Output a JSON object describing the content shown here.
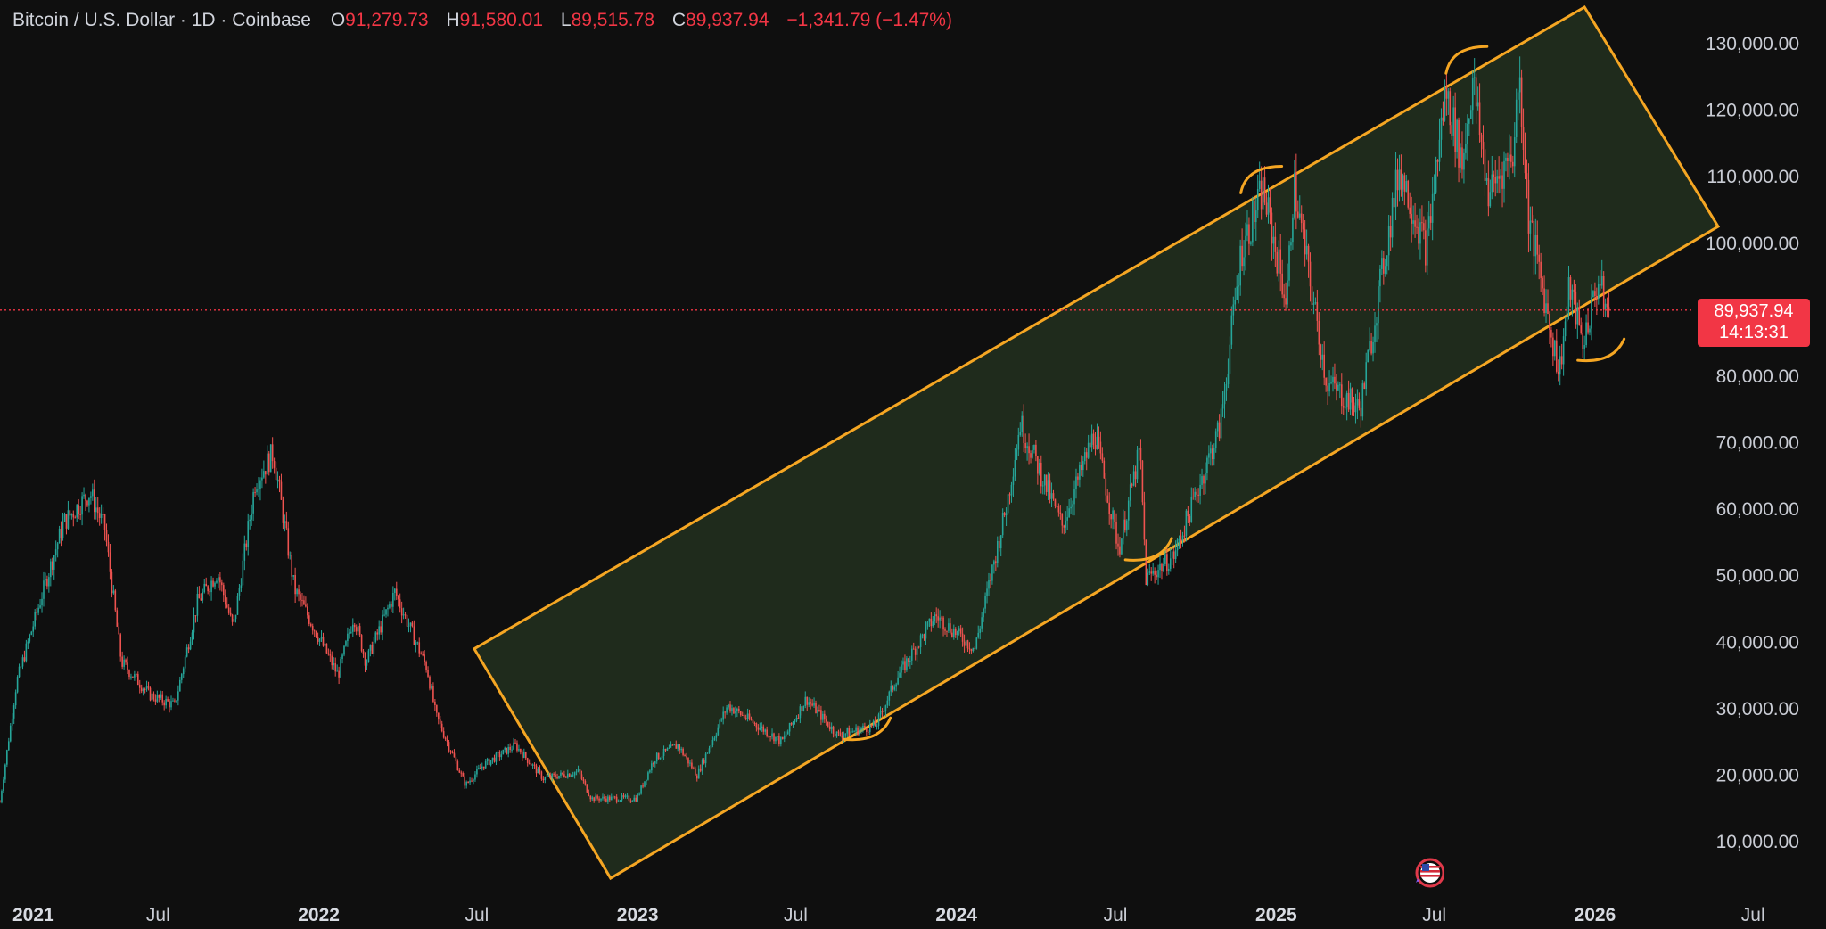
{
  "legend": {
    "symbol": "Bitcoin / U.S. Dollar · 1D · Coinbase",
    "open_label": "O",
    "open": "91,279.73",
    "high_label": "H",
    "high": "91,580.01",
    "low_label": "L",
    "low": "89,515.78",
    "close_label": "C",
    "close": "89,937.94",
    "change": "−1,341.79 (−1.47%)"
  },
  "price_tag": {
    "price": "89,937.94",
    "countdown": "14:13:31"
  },
  "colors": {
    "background": "#0f0f0f",
    "up": "#26a69a",
    "down": "#ef5350",
    "channel_stroke": "#f5a623",
    "channel_fill": "#1f2b1c",
    "last_price": "#f23645"
  },
  "chart_data": {
    "type": "candlestick",
    "y_scale": "linear",
    "ylim": [
      0,
      137000
    ],
    "yticks": [
      10000,
      20000,
      30000,
      40000,
      50000,
      60000,
      70000,
      80000,
      90000,
      100000,
      110000,
      120000,
      130000
    ],
    "ytick_labels": [
      "10,000.00",
      "20,000.00",
      "30,000.00",
      "40,000.00",
      "50,000.00",
      "60,000.00",
      "70,000.00",
      "80,000.00",
      "90,000.00",
      "100,000.00",
      "110,000.00",
      "120,000.00",
      "130,000.00"
    ],
    "xlim": [
      "2021-01-01",
      "2026-09-01"
    ],
    "xticks": [
      {
        "date": "2021-01-01",
        "label": "2021",
        "year": true
      },
      {
        "date": "2021-07-01",
        "label": "Jul",
        "year": false
      },
      {
        "date": "2022-01-01",
        "label": "2022",
        "year": true
      },
      {
        "date": "2022-07-01",
        "label": "Jul",
        "year": false
      },
      {
        "date": "2023-01-01",
        "label": "2023",
        "year": true
      },
      {
        "date": "2023-07-01",
        "label": "Jul",
        "year": false
      },
      {
        "date": "2024-01-01",
        "label": "2024",
        "year": true
      },
      {
        "date": "2024-07-01",
        "label": "Jul",
        "year": false
      },
      {
        "date": "2025-01-01",
        "label": "2025",
        "year": true
      },
      {
        "date": "2025-07-01",
        "label": "Jul",
        "year": false
      },
      {
        "date": "2026-01-01",
        "label": "2026",
        "year": true
      },
      {
        "date": "2026-07-01",
        "label": "Jul",
        "year": false
      }
    ],
    "last_price": 89937.94,
    "price_path": [
      [
        "2021-01-01",
        16000
      ],
      [
        "2021-01-20",
        34000
      ],
      [
        "2021-02-20",
        48000
      ],
      [
        "2021-03-15",
        58000
      ],
      [
        "2021-04-14",
        62500
      ],
      [
        "2021-05-01",
        57000
      ],
      [
        "2021-05-20",
        37000
      ],
      [
        "2021-06-22",
        32000
      ],
      [
        "2021-07-20",
        30500
      ],
      [
        "2021-08-15",
        46000
      ],
      [
        "2021-09-07",
        50500
      ],
      [
        "2021-09-25",
        42000
      ],
      [
        "2021-10-20",
        64000
      ],
      [
        "2021-11-10",
        68500
      ],
      [
        "2021-12-04",
        48000
      ],
      [
        "2022-01-23",
        35000
      ],
      [
        "2022-02-10",
        44000
      ],
      [
        "2022-02-24",
        37000
      ],
      [
        "2022-03-29",
        47500
      ],
      [
        "2022-05-05",
        36000
      ],
      [
        "2022-05-15",
        29000
      ],
      [
        "2022-06-18",
        18500
      ],
      [
        "2022-07-08",
        21500
      ],
      [
        "2022-08-14",
        24500
      ],
      [
        "2022-09-15",
        19500
      ],
      [
        "2022-10-25",
        20500
      ],
      [
        "2022-11-09",
        16500
      ],
      [
        "2022-12-31",
        16500
      ],
      [
        "2023-01-20",
        22500
      ],
      [
        "2023-02-16",
        24500
      ],
      [
        "2023-03-10",
        20000
      ],
      [
        "2023-04-14",
        30500
      ],
      [
        "2023-06-15",
        25000
      ],
      [
        "2023-07-13",
        31500
      ],
      [
        "2023-08-18",
        26000
      ],
      [
        "2023-10-01",
        27500
      ],
      [
        "2023-10-24",
        34500
      ],
      [
        "2023-12-08",
        44000
      ],
      [
        "2024-01-22",
        39000
      ],
      [
        "2024-02-28",
        61000
      ],
      [
        "2024-03-14",
        73000
      ],
      [
        "2024-05-01",
        57500
      ],
      [
        "2024-06-07",
        71500
      ],
      [
        "2024-07-05",
        54000
      ],
      [
        "2024-07-29",
        69000
      ],
      [
        "2024-08-05",
        49500
      ],
      [
        "2024-09-06",
        53000
      ],
      [
        "2024-10-29",
        72500
      ],
      [
        "2024-11-22",
        99000
      ],
      [
        "2024-12-17",
        108000
      ],
      [
        "2025-01-13",
        91000
      ],
      [
        "2025-01-21",
        109000
      ],
      [
        "2025-02-28",
        79000
      ],
      [
        "2025-04-07",
        75000
      ],
      [
        "2025-05-22",
        111500
      ],
      [
        "2025-06-22",
        99000
      ],
      [
        "2025-07-14",
        123000
      ],
      [
        "2025-08-02",
        112000
      ],
      [
        "2025-08-14",
        124500
      ],
      [
        "2025-09-01",
        107500
      ],
      [
        "2025-09-30",
        114000
      ],
      [
        "2025-10-06",
        126000
      ],
      [
        "2025-10-17",
        104000
      ],
      [
        "2025-11-21",
        80500
      ],
      [
        "2025-12-03",
        93500
      ],
      [
        "2025-12-18",
        85000
      ],
      [
        "2026-01-05",
        94500
      ],
      [
        "2026-01-13",
        90500
      ],
      [
        "2026-01-17",
        89937.94
      ]
    ],
    "channel": {
      "upper": [
        [
          "2022-06-28",
          39000
        ],
        [
          "2025-12-20",
          135500
        ]
      ],
      "lower": [
        [
          "2022-12-01",
          4500
        ],
        [
          "2026-05-22",
          102500
        ]
      ]
    },
    "touch_markers": [
      {
        "date": "2023-09-25",
        "price": 27000,
        "side": "lower"
      },
      {
        "date": "2024-08-12",
        "price": 54000,
        "side": "lower"
      },
      {
        "date": "2024-12-18",
        "price": 110500,
        "side": "upper"
      },
      {
        "date": "2025-08-10",
        "price": 128500,
        "side": "upper"
      },
      {
        "date": "2026-01-12",
        "price": 84000,
        "side": "lower"
      }
    ]
  }
}
